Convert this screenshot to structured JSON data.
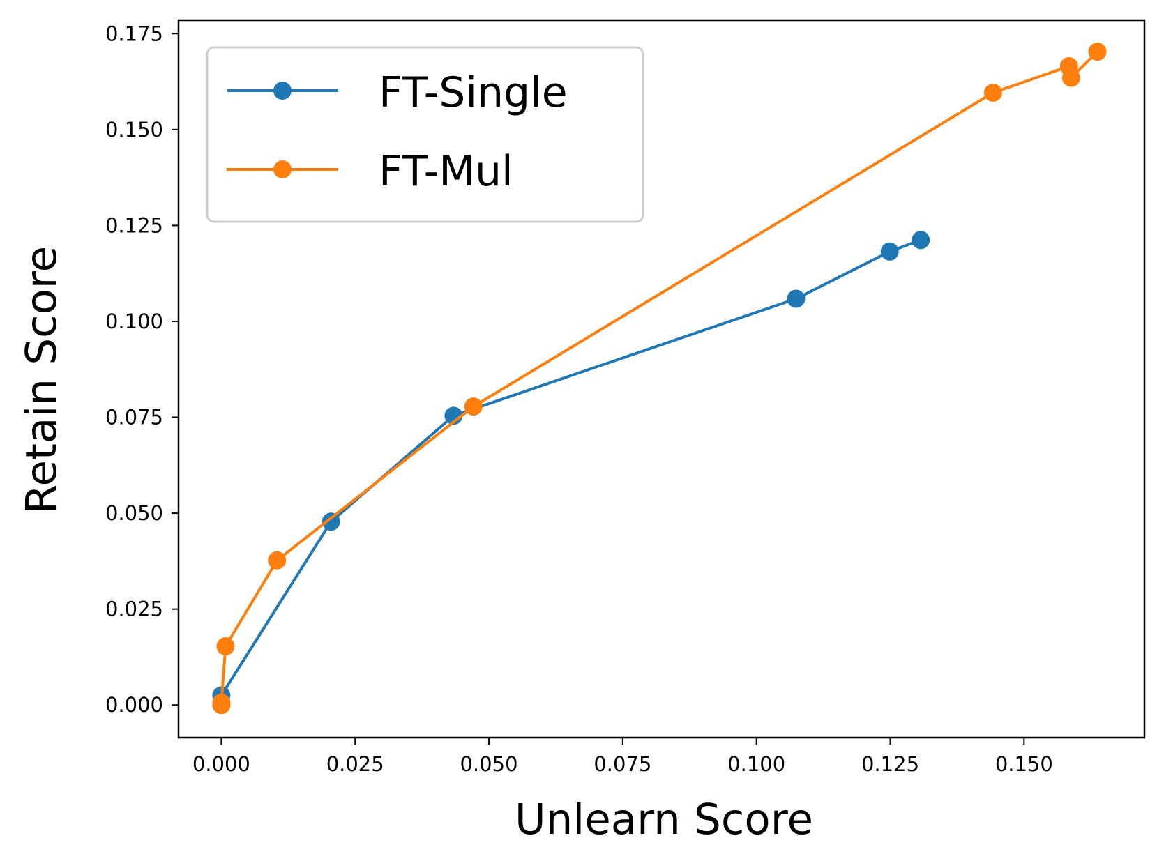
{
  "chart_data": {
    "type": "line",
    "title": "",
    "xlabel": "Unlearn Score",
    "ylabel": "Retain Score",
    "xlim": [
      -0.008,
      0.1725
    ],
    "ylim": [
      -0.0085,
      0.1785
    ],
    "xticks": [
      {
        "value": 0.0,
        "label": "0.000"
      },
      {
        "value": 0.025,
        "label": "0.025"
      },
      {
        "value": 0.05,
        "label": "0.050"
      },
      {
        "value": 0.075,
        "label": "0.075"
      },
      {
        "value": 0.1,
        "label": "0.100"
      },
      {
        "value": 0.125,
        "label": "0.125"
      },
      {
        "value": 0.15,
        "label": "0.150"
      }
    ],
    "yticks": [
      {
        "value": 0.0,
        "label": "0.000"
      },
      {
        "value": 0.025,
        "label": "0.025"
      },
      {
        "value": 0.05,
        "label": "0.050"
      },
      {
        "value": 0.075,
        "label": "0.075"
      },
      {
        "value": 0.1,
        "label": "0.100"
      },
      {
        "value": 0.125,
        "label": "0.125"
      },
      {
        "value": 0.15,
        "label": "0.150"
      },
      {
        "value": 0.175,
        "label": "0.175"
      }
    ],
    "grid": false,
    "legend_position": "upper-left",
    "series": [
      {
        "name": "FT-Single",
        "color": "#1f77b4",
        "marker": "circle",
        "points": [
          {
            "x": 0.0,
            "y": 0.0025
          },
          {
            "x": 0.0205,
            "y": 0.0478
          },
          {
            "x": 0.0434,
            "y": 0.0754
          },
          {
            "x": 0.1074,
            "y": 0.1059
          },
          {
            "x": 0.1249,
            "y": 0.1182
          },
          {
            "x": 0.1307,
            "y": 0.1212
          }
        ]
      },
      {
        "name": "FT-Mul",
        "color": "#ff7f0e",
        "marker": "circle",
        "points": [
          {
            "x": 0.0,
            "y": 0.0
          },
          {
            "x": 0.0,
            "y": 0.0006
          },
          {
            "x": 0.0008,
            "y": 0.0153
          },
          {
            "x": 0.0104,
            "y": 0.0377
          },
          {
            "x": 0.0471,
            "y": 0.0778
          },
          {
            "x": 0.1442,
            "y": 0.1596
          },
          {
            "x": 0.1584,
            "y": 0.1665
          },
          {
            "x": 0.1588,
            "y": 0.1635
          },
          {
            "x": 0.1637,
            "y": 0.1703
          }
        ]
      }
    ]
  }
}
